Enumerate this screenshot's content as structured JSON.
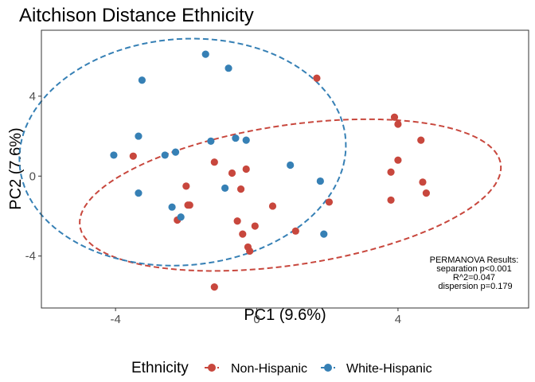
{
  "chart_data": {
    "type": "scatter",
    "title": "Aitchison Distance Ethnicity",
    "xlabel": "PC1 (9.6%)",
    "ylabel": "PC2 (7.6%)",
    "xlim": [
      -6.1,
      7.7
    ],
    "ylim": [
      -6.6,
      7.3
    ],
    "xticks": [
      -4,
      0,
      4
    ],
    "yticks": [
      -4,
      0,
      4
    ],
    "grid": false,
    "legend": {
      "title": "Ethnicity",
      "placement": "bottom",
      "entries": [
        "Non-Hispanic",
        "White-Hispanic"
      ]
    },
    "annotation": [
      "PERMANOVA Results:",
      "separation p<0.001",
      "R^2=0.047",
      "dispersion p=0.179"
    ],
    "series": [
      {
        "name": "Non-Hispanic",
        "color": "#c8473d",
        "points": [
          [
            1.7,
            4.9
          ],
          [
            3.9,
            2.95
          ],
          [
            4.0,
            2.6
          ],
          [
            4.65,
            1.8
          ],
          [
            4.0,
            0.8
          ],
          [
            3.8,
            0.2
          ],
          [
            4.7,
            -0.3
          ],
          [
            4.8,
            -0.85
          ],
          [
            3.8,
            -1.2
          ],
          [
            -3.5,
            1.0
          ],
          [
            -1.2,
            0.7
          ],
          [
            -0.7,
            0.15
          ],
          [
            -0.3,
            0.35
          ],
          [
            -0.45,
            -0.65
          ],
          [
            -2.0,
            -0.5
          ],
          [
            -1.9,
            -1.45
          ],
          [
            -1.95,
            -1.45
          ],
          [
            -2.25,
            -2.2
          ],
          [
            0.45,
            -1.5
          ],
          [
            -0.55,
            -2.25
          ],
          [
            -0.4,
            -2.9
          ],
          [
            -0.05,
            -2.5
          ],
          [
            1.1,
            -2.75
          ],
          [
            2.05,
            -1.3
          ],
          [
            -0.25,
            -3.55
          ],
          [
            -0.2,
            -3.75
          ],
          [
            -1.2,
            -5.55
          ]
        ],
        "ellipse": {
          "center": [
            0.95,
            -0.95
          ],
          "semi_axes": [
            6.2,
            3.4
          ],
          "rotation_deg": 19
        }
      },
      {
        "name": "White-Hispanic",
        "color": "#3680b5",
        "points": [
          [
            -1.45,
            6.1
          ],
          [
            -0.8,
            5.4
          ],
          [
            -3.25,
            4.8
          ],
          [
            -3.35,
            2.0
          ],
          [
            -4.05,
            1.05
          ],
          [
            -2.6,
            1.05
          ],
          [
            -2.3,
            1.2
          ],
          [
            -1.3,
            1.75
          ],
          [
            -0.6,
            1.9
          ],
          [
            -0.3,
            1.8
          ],
          [
            0.95,
            0.55
          ],
          [
            -0.9,
            -0.6
          ],
          [
            1.8,
            -0.25
          ],
          [
            -3.35,
            -0.85
          ],
          [
            -2.4,
            -1.55
          ],
          [
            -2.15,
            -2.05
          ],
          [
            1.9,
            -2.9
          ]
        ],
        "ellipse": {
          "center": [
            -2.1,
            1.2
          ],
          "semi_axes": [
            4.6,
            5.7
          ],
          "rotation_deg": -8
        }
      }
    ]
  }
}
